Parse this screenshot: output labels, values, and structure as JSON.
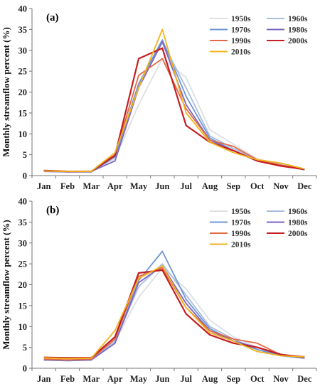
{
  "chart_data": [
    {
      "type": "line",
      "panel_label": "(a)",
      "ylabel": "Monthly streamflow percent (%)",
      "xlabel": "",
      "ylim": [
        0,
        40
      ],
      "yticks": [
        0,
        5,
        10,
        15,
        20,
        25,
        30,
        35,
        40
      ],
      "categories": [
        "Jan",
        "Feb",
        "Mar",
        "Apr",
        "May",
        "Jun",
        "Jul",
        "Aug",
        "Sep",
        "Oct",
        "Nov",
        "Dec"
      ],
      "legend_position": "top-right",
      "grid": false,
      "series": [
        {
          "name": "1950s",
          "color": "#dcdfe4",
          "values": [
            1.0,
            0.9,
            0.9,
            4.0,
            17.0,
            28.0,
            23.5,
            11.0,
            7.5,
            4.0,
            2.8,
            1.5
          ]
        },
        {
          "name": "1960s",
          "color": "#a8bedc",
          "values": [
            1.0,
            0.9,
            0.9,
            4.5,
            21.5,
            32.0,
            21.0,
            9.5,
            6.5,
            3.8,
            2.6,
            1.4
          ]
        },
        {
          "name": "1970s",
          "color": "#6f96d4",
          "values": [
            1.0,
            0.9,
            0.9,
            4.5,
            22.0,
            32.5,
            19.0,
            9.0,
            6.0,
            3.5,
            2.5,
            1.4
          ]
        },
        {
          "name": "1980s",
          "color": "#7b66c6",
          "values": [
            1.0,
            0.9,
            1.0,
            3.5,
            21.0,
            32.0,
            17.0,
            8.5,
            6.0,
            3.5,
            2.4,
            1.4
          ]
        },
        {
          "name": "1990s",
          "color": "#e26a46",
          "values": [
            1.1,
            1.0,
            1.0,
            5.0,
            24.0,
            28.0,
            16.0,
            8.5,
            7.0,
            3.8,
            2.5,
            1.6
          ]
        },
        {
          "name": "2000s",
          "color": "#c41e22",
          "values": [
            1.2,
            1.0,
            1.0,
            4.8,
            28.0,
            30.5,
            12.0,
            8.0,
            6.0,
            3.5,
            2.3,
            1.5
          ]
        },
        {
          "name": "2010s",
          "color": "#f0b41c",
          "values": [
            1.1,
            1.0,
            1.0,
            5.5,
            21.0,
            35.0,
            15.0,
            8.0,
            5.5,
            3.8,
            3.0,
            1.6
          ]
        }
      ]
    },
    {
      "type": "line",
      "panel_label": "(b)",
      "ylabel": "Monthly streamflow percent (%)",
      "xlabel": "",
      "ylim": [
        0,
        40
      ],
      "yticks": [
        0,
        5,
        10,
        15,
        20,
        25,
        30,
        35,
        40
      ],
      "categories": [
        "Jan",
        "Feb",
        "Mar",
        "Apr",
        "May",
        "Jun",
        "Jul",
        "Aug",
        "Sep",
        "Oct",
        "Nov",
        "Dec"
      ],
      "legend_position": "top-right",
      "grid": false,
      "series": [
        {
          "name": "1950s",
          "color": "#dcdfe4",
          "values": [
            2.0,
            1.8,
            2.0,
            6.5,
            17.0,
            24.0,
            19.0,
            11.5,
            7.5,
            5.0,
            3.2,
            2.5
          ]
        },
        {
          "name": "1960s",
          "color": "#a8bedc",
          "values": [
            2.0,
            1.8,
            2.0,
            6.5,
            19.5,
            25.0,
            17.5,
            10.0,
            7.0,
            4.5,
            3.0,
            2.4
          ]
        },
        {
          "name": "1970s",
          "color": "#6f96d4",
          "values": [
            2.0,
            1.8,
            2.0,
            6.0,
            21.0,
            28.0,
            16.5,
            9.5,
            6.5,
            4.5,
            3.0,
            2.4
          ]
        },
        {
          "name": "1980s",
          "color": "#7b66c6",
          "values": [
            2.0,
            1.9,
            2.0,
            6.0,
            20.5,
            24.5,
            15.5,
            9.0,
            6.5,
            5.0,
            3.1,
            2.5
          ]
        },
        {
          "name": "1990s",
          "color": "#e26a46",
          "values": [
            2.2,
            2.0,
            2.2,
            7.0,
            22.0,
            24.0,
            14.5,
            9.0,
            7.0,
            6.0,
            3.2,
            2.8
          ]
        },
        {
          "name": "2000s",
          "color": "#c41e22",
          "values": [
            2.6,
            2.5,
            2.5,
            7.5,
            22.8,
            23.5,
            13.0,
            8.0,
            6.0,
            5.0,
            3.3,
            2.6
          ]
        },
        {
          "name": "2010s",
          "color": "#f0b41c",
          "values": [
            2.5,
            2.3,
            2.4,
            9.0,
            21.5,
            24.5,
            14.5,
            8.5,
            6.5,
            4.0,
            3.0,
            2.7
          ]
        }
      ]
    }
  ]
}
